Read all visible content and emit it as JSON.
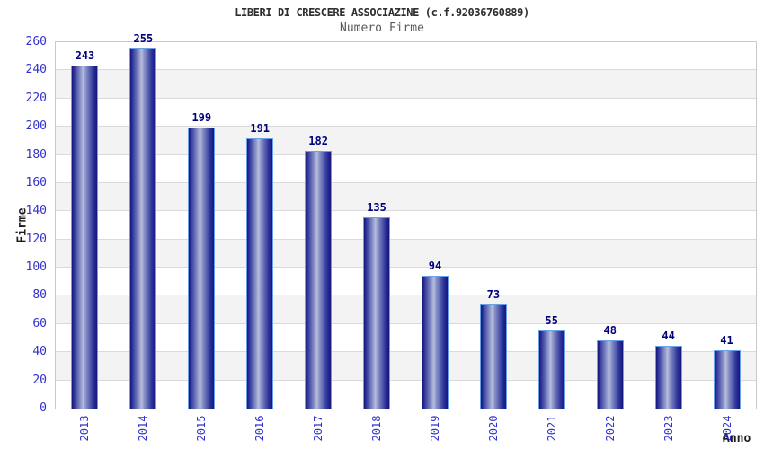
{
  "chart_data": {
    "type": "bar",
    "title": "LIBERI DI CRESCERE ASSOCIAZINE (c.f.92036760889)",
    "subtitle": "Numero Firme",
    "xlabel": "Anno",
    "ylabel": "Firme",
    "categories": [
      "2013",
      "2014",
      "2015",
      "2016",
      "2017",
      "2018",
      "2019",
      "2020",
      "2021",
      "2022",
      "2023",
      "2024"
    ],
    "values": [
      243,
      255,
      199,
      191,
      182,
      135,
      94,
      73,
      55,
      48,
      44,
      41
    ],
    "ylim": [
      0,
      260
    ],
    "ytick_step": 20,
    "ytick_labels": [
      "0",
      "20",
      "40",
      "60",
      "80",
      "100",
      "120",
      "140",
      "160",
      "180",
      "200",
      "220",
      "240",
      "260"
    ],
    "grid": true,
    "legend": false,
    "band_fill": "alternating horizontal bands, white and light gray",
    "colors": {
      "bar_dark": "#15157c",
      "bar_mid": "#3a41a0",
      "bar_light": "#b9bfde",
      "bar_border": "#6aa0e8",
      "value_label": "#00007f",
      "tick_label": "#3232cd",
      "band_gray": "#f3f3f3",
      "band_white": "#ffffff",
      "gridline": "#dadada",
      "plot_border": "#c9c9c9",
      "title_text": "#2e2e2e",
      "subtitle_text": "#5a5a5a"
    }
  }
}
